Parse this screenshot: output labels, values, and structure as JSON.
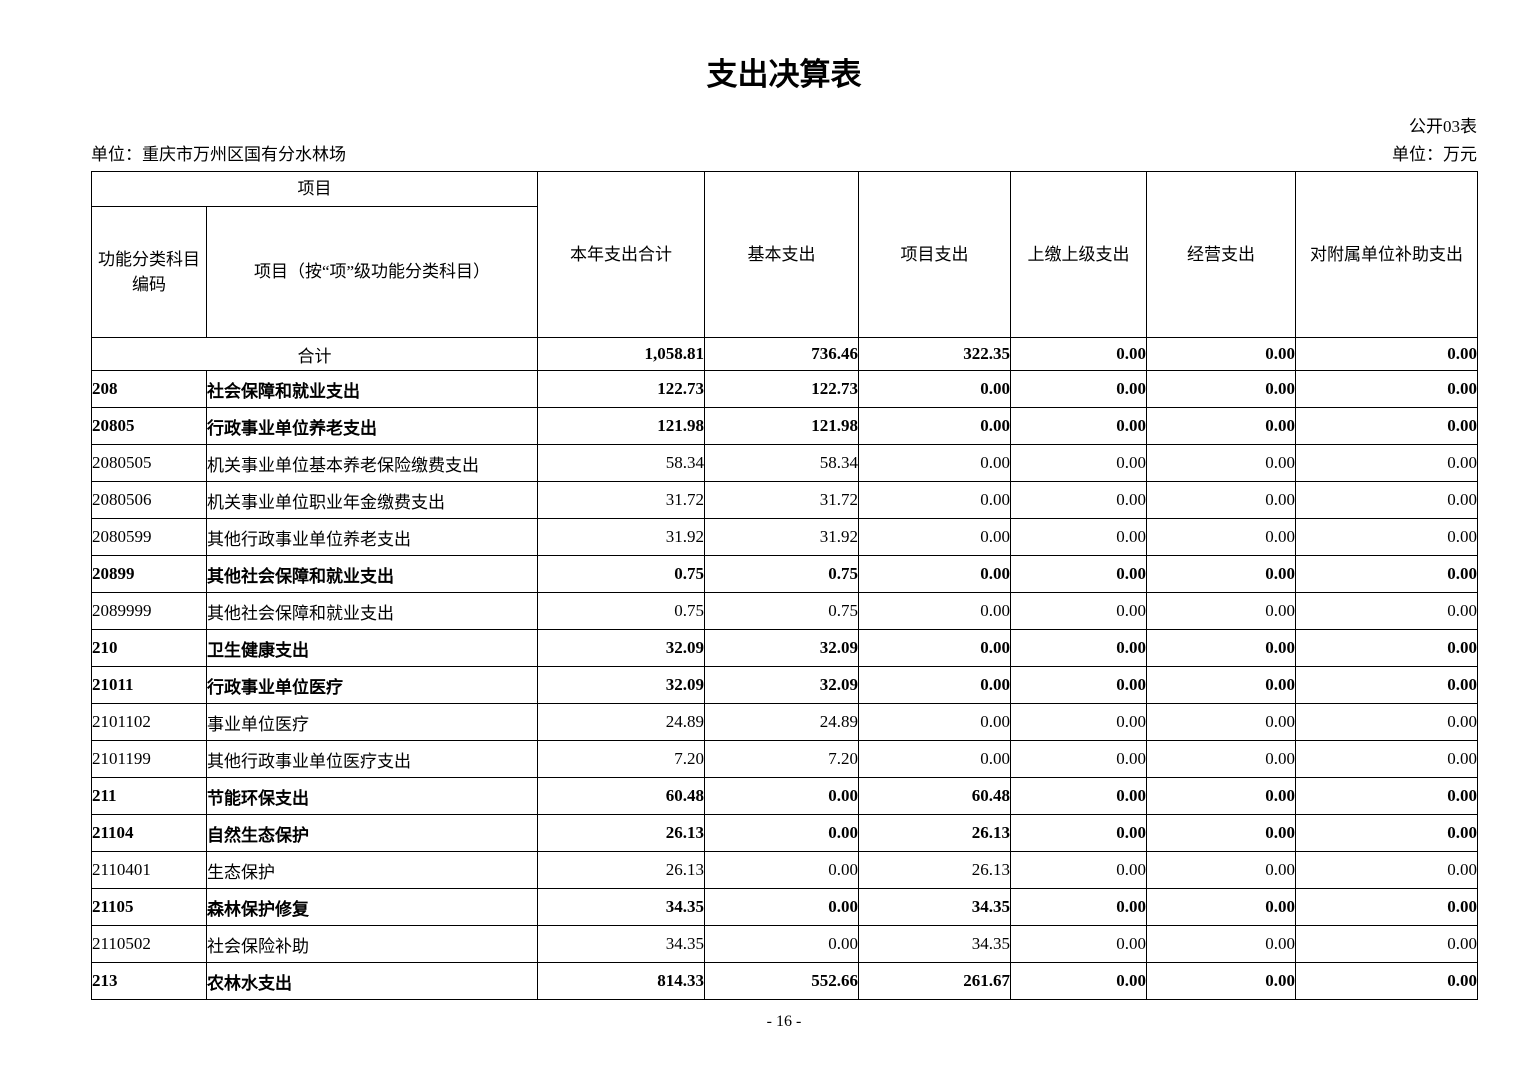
{
  "page": {
    "title": "支出决算表",
    "form_code": "公开03表",
    "unit_left": "单位：重庆市万州区国有分水林场",
    "unit_right": "单位：万元",
    "page_number": "- 16 -"
  },
  "colors": {
    "text": "#000000",
    "border": "#000000",
    "page_background": "#ffffff"
  },
  "table": {
    "header": {
      "group_label": "项目",
      "col_code_line1": "功能分类科目",
      "col_code_line2": "编码",
      "col_item": "项目（按“项”级功能分类科目）",
      "col_total": "本年支出合计",
      "col_basic": "基本支出",
      "col_project": "项目支出",
      "col_upper": "上缴上级支出",
      "col_operating": "经营支出",
      "col_subsidy": "对附属单位补助支出"
    },
    "total_row": {
      "label": "合计",
      "values": [
        "1,058.81",
        "736.46",
        "322.35",
        "0.00",
        "0.00",
        "0.00"
      ]
    },
    "rows": [
      {
        "code": "208",
        "name": "社会保障和就业支出",
        "values": [
          "122.73",
          "122.73",
          "0.00",
          "0.00",
          "0.00",
          "0.00"
        ],
        "bold": true
      },
      {
        "code": "20805",
        "name": "行政事业单位养老支出",
        "values": [
          "121.98",
          "121.98",
          "0.00",
          "0.00",
          "0.00",
          "0.00"
        ],
        "bold": true
      },
      {
        "code": "2080505",
        "name": "机关事业单位基本养老保险缴费支出",
        "values": [
          "58.34",
          "58.34",
          "0.00",
          "0.00",
          "0.00",
          "0.00"
        ],
        "bold": false
      },
      {
        "code": "2080506",
        "name": "机关事业单位职业年金缴费支出",
        "values": [
          "31.72",
          "31.72",
          "0.00",
          "0.00",
          "0.00",
          "0.00"
        ],
        "bold": false
      },
      {
        "code": "2080599",
        "name": "其他行政事业单位养老支出",
        "values": [
          "31.92",
          "31.92",
          "0.00",
          "0.00",
          "0.00",
          "0.00"
        ],
        "bold": false
      },
      {
        "code": "20899",
        "name": "其他社会保障和就业支出",
        "values": [
          "0.75",
          "0.75",
          "0.00",
          "0.00",
          "0.00",
          "0.00"
        ],
        "bold": true
      },
      {
        "code": "2089999",
        "name": "其他社会保障和就业支出",
        "values": [
          "0.75",
          "0.75",
          "0.00",
          "0.00",
          "0.00",
          "0.00"
        ],
        "bold": false
      },
      {
        "code": "210",
        "name": "卫生健康支出",
        "values": [
          "32.09",
          "32.09",
          "0.00",
          "0.00",
          "0.00",
          "0.00"
        ],
        "bold": true
      },
      {
        "code": "21011",
        "name": "行政事业单位医疗",
        "values": [
          "32.09",
          "32.09",
          "0.00",
          "0.00",
          "0.00",
          "0.00"
        ],
        "bold": true
      },
      {
        "code": "2101102",
        "name": "事业单位医疗",
        "values": [
          "24.89",
          "24.89",
          "0.00",
          "0.00",
          "0.00",
          "0.00"
        ],
        "bold": false
      },
      {
        "code": "2101199",
        "name": "其他行政事业单位医疗支出",
        "values": [
          "7.20",
          "7.20",
          "0.00",
          "0.00",
          "0.00",
          "0.00"
        ],
        "bold": false
      },
      {
        "code": "211",
        "name": "节能环保支出",
        "values": [
          "60.48",
          "0.00",
          "60.48",
          "0.00",
          "0.00",
          "0.00"
        ],
        "bold": true
      },
      {
        "code": "21104",
        "name": "自然生态保护",
        "values": [
          "26.13",
          "0.00",
          "26.13",
          "0.00",
          "0.00",
          "0.00"
        ],
        "bold": true
      },
      {
        "code": "2110401",
        "name": "生态保护",
        "values": [
          "26.13",
          "0.00",
          "26.13",
          "0.00",
          "0.00",
          "0.00"
        ],
        "bold": false
      },
      {
        "code": "21105",
        "name": "森林保护修复",
        "values": [
          "34.35",
          "0.00",
          "34.35",
          "0.00",
          "0.00",
          "0.00"
        ],
        "bold": true
      },
      {
        "code": "2110502",
        "name": "社会保险补助",
        "values": [
          "34.35",
          "0.00",
          "34.35",
          "0.00",
          "0.00",
          "0.00"
        ],
        "bold": false
      },
      {
        "code": "213",
        "name": "农林水支出",
        "values": [
          "814.33",
          "552.66",
          "261.67",
          "0.00",
          "0.00",
          "0.00"
        ],
        "bold": true
      }
    ]
  }
}
